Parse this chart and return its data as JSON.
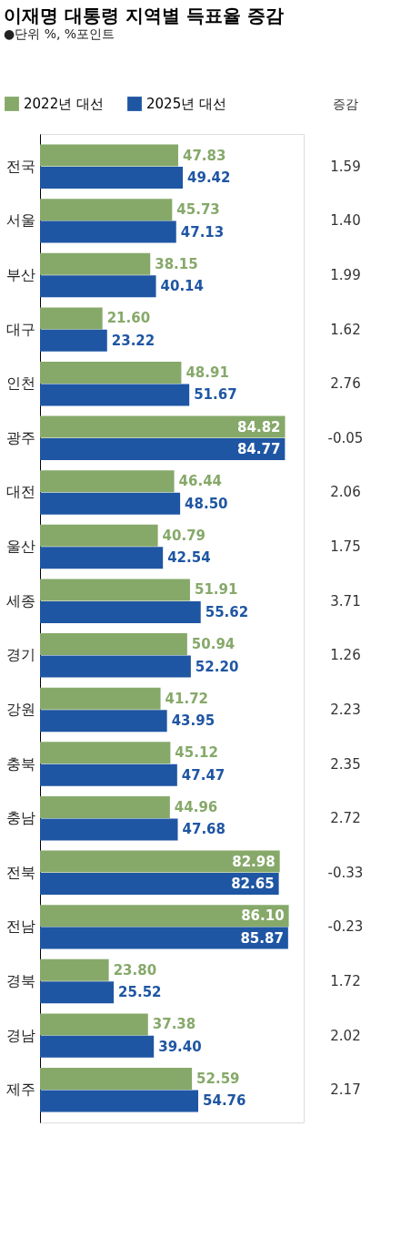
{
  "chart_data": {
    "type": "bar",
    "orientation": "horizontal",
    "title": "이재명 대통령 지역별 득표율 증감",
    "subtitle": "●단위 %, %포인트",
    "categories": [
      "전국",
      "서울",
      "부산",
      "대구",
      "인천",
      "광주",
      "대전",
      "울산",
      "세종",
      "경기",
      "강원",
      "충북",
      "충남",
      "전북",
      "전남",
      "경북",
      "경남",
      "제주"
    ],
    "series": [
      {
        "name": "2022년 대선",
        "color": "#86a96a",
        "values": [
          47.83,
          45.73,
          38.15,
          21.6,
          48.91,
          84.82,
          46.44,
          40.79,
          51.91,
          50.94,
          41.72,
          45.12,
          44.96,
          82.98,
          86.1,
          23.8,
          37.38,
          52.59
        ],
        "value_labels": [
          "47.83",
          "45.73",
          "38.15",
          "21.60",
          "48.91",
          "84.82",
          "46.44",
          "40.79",
          "51.91",
          "50.94",
          "41.72",
          "45.12",
          "44.96",
          "82.98",
          "86.10",
          "23.80",
          "37.38",
          "52.59"
        ]
      },
      {
        "name": "2025년 대선",
        "color": "#1f56a3",
        "values": [
          49.42,
          47.13,
          40.14,
          23.22,
          51.67,
          84.77,
          48.5,
          42.54,
          55.62,
          52.2,
          43.95,
          47.47,
          47.68,
          82.65,
          85.87,
          25.52,
          39.4,
          54.76
        ],
        "value_labels": [
          "49.42",
          "47.13",
          "40.14",
          "23.22",
          "51.67",
          "84.77",
          "48.50",
          "42.54",
          "55.62",
          "52.20",
          "43.95",
          "47.47",
          "47.68",
          "82.65",
          "85.87",
          "25.52",
          "39.40",
          "54.76"
        ]
      }
    ],
    "legend": "top left",
    "annotations": [
      "증감",
      "1.59",
      "1.40",
      "1.99",
      "1.62",
      "2.76",
      "-0.05",
      "2.06",
      "1.75",
      "3.71",
      "1.26",
      "2.23",
      "2.35",
      "2.72",
      "-0.33",
      "-0.23",
      "1.72",
      "2.02",
      "2.17"
    ]
  }
}
